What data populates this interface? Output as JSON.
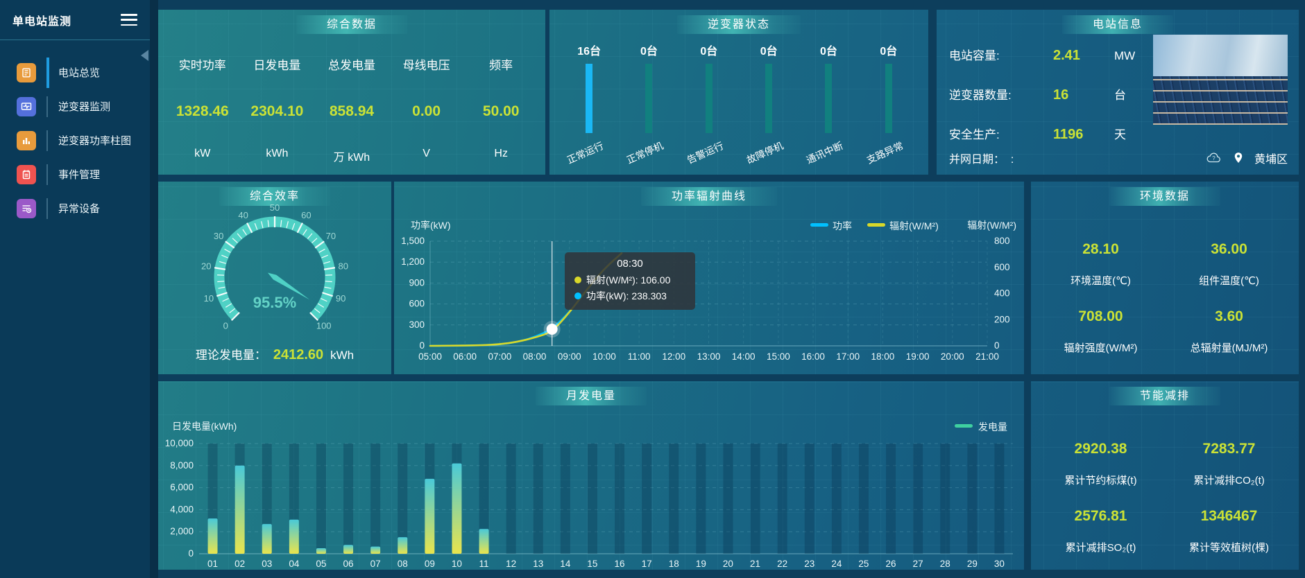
{
  "app": {
    "title": "单电站监测"
  },
  "sidebar": {
    "items": [
      {
        "id": "overview",
        "label": "电站总览",
        "icon": "document-icon",
        "color": "#e89b3c",
        "active": true
      },
      {
        "id": "inverter-monitor",
        "label": "逆变器监测",
        "icon": "monitor-wave-icon",
        "color": "#5470dc",
        "active": false
      },
      {
        "id": "inverter-power",
        "label": "逆变器功率柱图",
        "icon": "bar-chart-icon",
        "color": "#e89b3c",
        "active": false
      },
      {
        "id": "event-management",
        "label": "事件管理",
        "icon": "notebook-icon",
        "color": "#ef5350",
        "active": false
      },
      {
        "id": "abnormal-devices",
        "label": "异常设备",
        "icon": "device-list-icon",
        "color": "#9b59c8",
        "active": false
      }
    ]
  },
  "summary": {
    "title": "综合数据",
    "metrics": [
      {
        "label": "实时功率",
        "value": "1328.46",
        "unit": "kW"
      },
      {
        "label": "日发电量",
        "value": "2304.10",
        "unit": "kWh"
      },
      {
        "label": "总发电量",
        "value": "858.94",
        "unit": "万 kWh"
      },
      {
        "label": "母线电压",
        "value": "0.00",
        "unit": "V"
      },
      {
        "label": "频率",
        "value": "50.00",
        "unit": "Hz"
      }
    ]
  },
  "inverter_status": {
    "title": "逆变器状态"
  },
  "station_info": {
    "title": "电站信息",
    "rows": [
      {
        "label": "电站容量:",
        "value": "2.41",
        "unit": "MW"
      },
      {
        "label": "逆变器数量:",
        "value": "16",
        "unit": "台"
      },
      {
        "label": "安全生产:",
        "value": "1196",
        "unit": "天"
      }
    ],
    "grid_date_label": "并网日期：",
    "grid_date_value": ":",
    "location": "黄埔区"
  },
  "efficiency": {
    "title": "综合效率",
    "theory_label": "理论发电量：",
    "theory_value": "2412.60",
    "theory_unit": "kWh"
  },
  "power_curve": {
    "title": "功率辐射曲线"
  },
  "environment": {
    "title": "环境数据",
    "metrics": [
      {
        "value": "28.10",
        "label": "环境温度(℃)"
      },
      {
        "value": "36.00",
        "label": "组件温度(℃)"
      },
      {
        "value": "708.00",
        "label": "辐射强度(W/M²)"
      },
      {
        "value": "3.60",
        "label": "总辐射量(MJ/M²)"
      }
    ]
  },
  "monthly": {
    "title": "月发电量"
  },
  "saving": {
    "title": "节能减排",
    "metrics": [
      {
        "value": "2920.38",
        "label": "累计节约标煤(t)"
      },
      {
        "value": "7283.77",
        "label": "累计减排CO₂(t)"
      },
      {
        "value": "2576.81",
        "label": "累计减排SO₂(t)"
      },
      {
        "value": "1346467",
        "label": "累计等效植树(棵)"
      }
    ]
  },
  "colors": {
    "value_yellow": "#cbe235",
    "accent_cyan": "#1ab8f5",
    "teal_bar": "#11807f",
    "series_power": "#00c0ff",
    "series_radiation": "#d8d82a",
    "legend_green": "#3fd0a0",
    "gauge_teal": "#4fd1c5",
    "active_menu_blue": "#1f9ce0"
  },
  "chart_data": [
    {
      "id": "inverter_status",
      "type": "bar",
      "categories": [
        "正常运行",
        "正常停机",
        "告警运行",
        "故障停机",
        "通讯中断",
        "支路异常"
      ],
      "values": [
        16,
        0,
        0,
        0,
        0,
        0
      ],
      "value_suffix": "台",
      "highlight_index": 0,
      "highlight_color": "#1ab8f5",
      "bar_color": "#11807f"
    },
    {
      "id": "efficiency_gauge",
      "type": "gauge",
      "min": 0,
      "max": 100,
      "tick_step": 10,
      "value": 95.5,
      "value_label": "95.5%"
    },
    {
      "id": "power_radiation",
      "type": "line",
      "title": "功率辐射曲线",
      "x_range": [
        5,
        21
      ],
      "x_ticks": [
        "05:00",
        "06:00",
        "07:00",
        "08:00",
        "09:00",
        "10:00",
        "11:00",
        "12:00",
        "13:00",
        "14:00",
        "15:00",
        "16:00",
        "17:00",
        "18:00",
        "19:00",
        "20:00",
        "21:00"
      ],
      "x_hours": [
        5,
        5.5,
        6,
        6.5,
        7,
        7.5,
        8,
        8.5,
        9,
        9.5,
        10,
        10.5
      ],
      "left_axis": {
        "title": "功率(kW)",
        "min": 0,
        "max": 1500,
        "ticks": [
          "0",
          "300",
          "600",
          "900",
          "1,200",
          "1,500"
        ]
      },
      "right_axis": {
        "title": "辐射(W/M²)",
        "min": 0,
        "max": 800,
        "ticks": [
          "0",
          "200",
          "400",
          "600",
          "800"
        ]
      },
      "series": [
        {
          "name": "功率",
          "axis": "left",
          "color": "#00c0ff",
          "values": [
            0,
            1,
            3,
            8,
            20,
            55,
            125,
            238.3,
            480,
            800,
            1100,
            1328
          ]
        },
        {
          "name": "辐射(W/M²)",
          "axis": "right",
          "color": "#d8d82a",
          "values": [
            0,
            1,
            2,
            5,
            12,
            30,
            62,
            106,
            255,
            430,
            590,
            708
          ]
        }
      ],
      "tooltip": {
        "time": "08:30",
        "marker_hour": 8.5,
        "marker_power": 238.3,
        "items": [
          {
            "name": "辐射(W/M²)",
            "value": "106.00",
            "color": "#d8d82a"
          },
          {
            "name": "功率(kW)",
            "value": "238.303",
            "color": "#00c0ff"
          }
        ]
      },
      "legend_position": "top-right",
      "grid": true
    },
    {
      "id": "monthly_energy",
      "type": "bar",
      "title": "月发电量",
      "ylabel": "日发电量(kWh)",
      "legend": "发电量",
      "ylim": [
        0,
        10000
      ],
      "y_ticks": [
        "0",
        "2,000",
        "4,000",
        "6,000",
        "8,000",
        "10,000"
      ],
      "categories": [
        "01",
        "02",
        "03",
        "04",
        "05",
        "06",
        "07",
        "08",
        "09",
        "10",
        "11",
        "12",
        "13",
        "14",
        "15",
        "16",
        "17",
        "18",
        "19",
        "20",
        "21",
        "22",
        "23",
        "24",
        "25",
        "26",
        "27",
        "28",
        "29",
        "30"
      ],
      "values": [
        3200,
        8000,
        2700,
        3100,
        500,
        800,
        650,
        1500,
        6800,
        8200,
        2250,
        0,
        0,
        0,
        0,
        0,
        0,
        0,
        0,
        0,
        0,
        0,
        0,
        0,
        0,
        0,
        0,
        0,
        0,
        0
      ]
    }
  ]
}
